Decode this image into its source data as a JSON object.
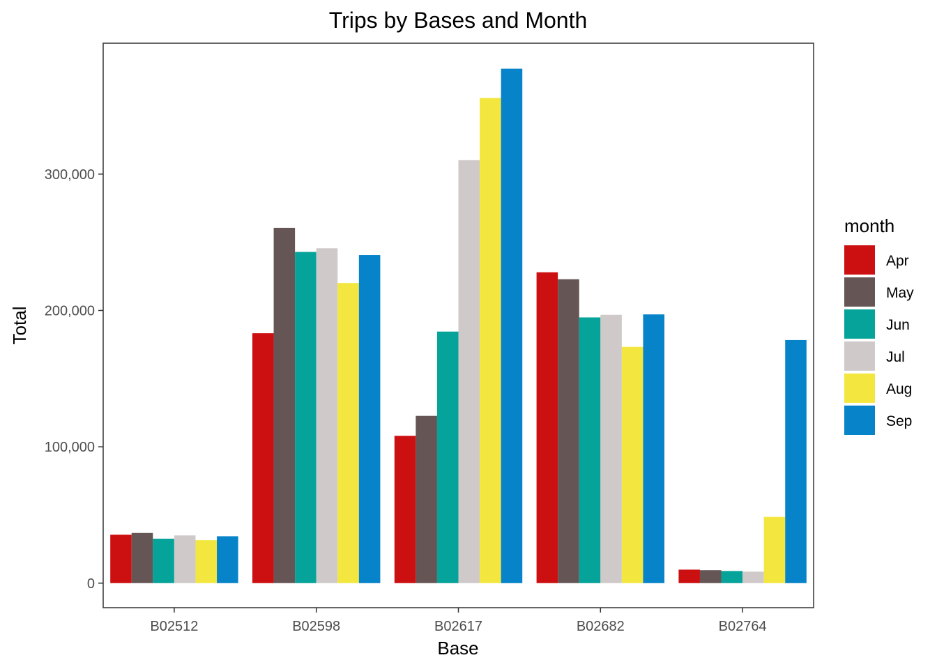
{
  "chart_data": {
    "type": "bar",
    "title": "Trips by Bases and Month",
    "xlabel": "Base",
    "ylabel": "Total",
    "categories": [
      "B02512",
      "B02598",
      "B02617",
      "B02682",
      "B02764"
    ],
    "ylim": [
      -18000,
      396000
    ],
    "yticks": [
      0,
      100000,
      200000,
      300000
    ],
    "ytick_labels": [
      "0",
      "100,000",
      "200,000",
      "300,000"
    ],
    "grid": false,
    "legend": {
      "title": "month",
      "position": "right"
    },
    "series": [
      {
        "name": "Apr",
        "color": "#CC1011",
        "values": [
          35500,
          183300,
          108000,
          228000,
          9900
        ]
      },
      {
        "name": "May",
        "color": "#665555",
        "values": [
          36800,
          260600,
          122700,
          222900,
          9500
        ]
      },
      {
        "name": "Jun",
        "color": "#05A399",
        "values": [
          32600,
          242900,
          184500,
          194900,
          8900
        ]
      },
      {
        "name": "Jul",
        "color": "#CFCAC9",
        "values": [
          35000,
          245600,
          310200,
          196800,
          8400
        ]
      },
      {
        "name": "Aug",
        "color": "#F3E73F",
        "values": [
          31500,
          220100,
          355800,
          173300,
          48600
        ]
      },
      {
        "name": "Sep",
        "color": "#0683C9",
        "values": [
          34400,
          240600,
          377300,
          197100,
          178300
        ]
      }
    ]
  }
}
